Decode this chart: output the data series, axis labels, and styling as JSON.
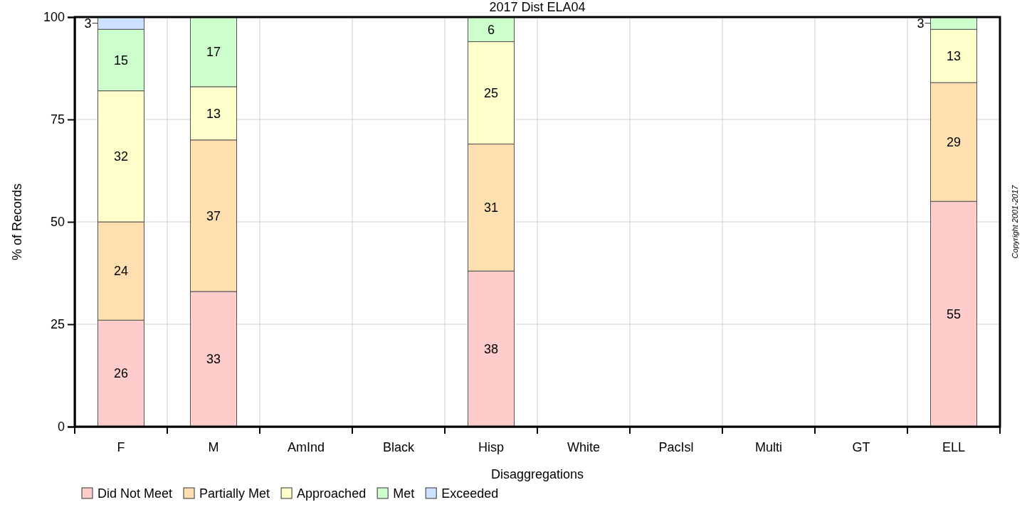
{
  "chart_data": {
    "type": "bar",
    "title": "2017 Dist ELA04",
    "xlabel": "Disaggregations",
    "ylabel": "% of Records",
    "categories": [
      "F",
      "M",
      "AmInd",
      "Black",
      "Hisp",
      "White",
      "PacIsl",
      "Multi",
      "GT",
      "ELL"
    ],
    "stacked": true,
    "data_labels": true,
    "grid": true,
    "legend": "bottom",
    "ylim": [
      0,
      100
    ],
    "yticks": [
      0,
      25,
      50,
      75,
      100
    ],
    "series": [
      {
        "name": "Did Not Meet",
        "color": "#ffcccc",
        "values": [
          26,
          33,
          null,
          null,
          38,
          null,
          null,
          null,
          null,
          55
        ]
      },
      {
        "name": "Partially Met",
        "color": "#ffdfb0",
        "values": [
          24,
          37,
          null,
          null,
          31,
          null,
          null,
          null,
          null,
          29
        ]
      },
      {
        "name": "Approached",
        "color": "#ffffcc",
        "values": [
          32,
          13,
          null,
          null,
          25,
          null,
          null,
          null,
          null,
          13
        ]
      },
      {
        "name": "Met",
        "color": "#ccffcc",
        "values": [
          15,
          17,
          null,
          null,
          6,
          null,
          null,
          null,
          null,
          3
        ]
      },
      {
        "name": "Exceeded",
        "color": "#cce0ff",
        "values": [
          3,
          null,
          null,
          null,
          null,
          null,
          null,
          null,
          null,
          null
        ]
      }
    ],
    "annotations": [
      "Copyright 2001-2017"
    ]
  }
}
